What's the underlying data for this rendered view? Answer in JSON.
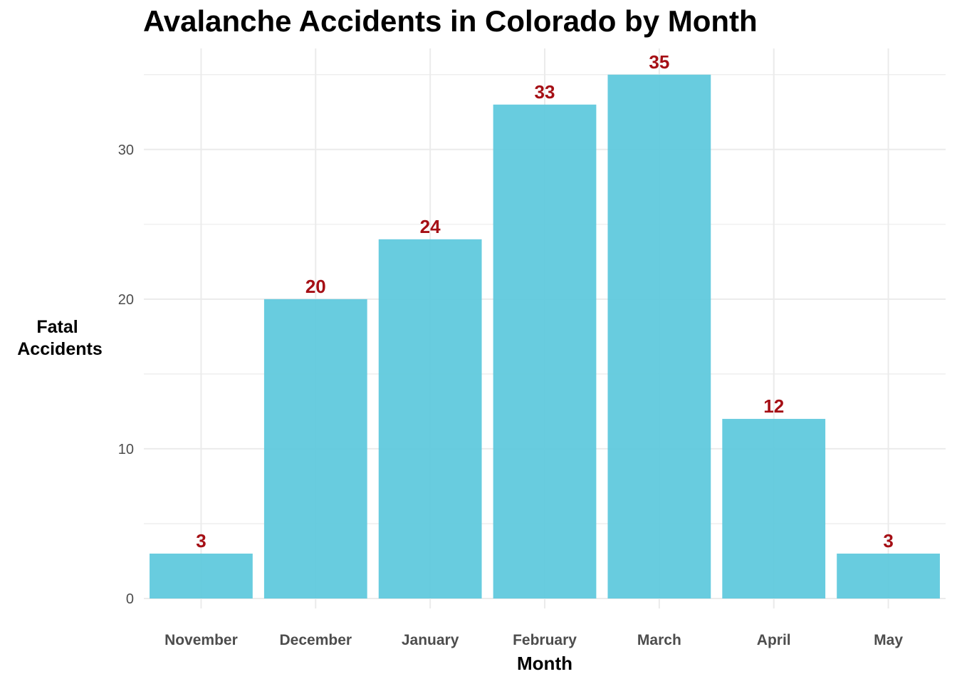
{
  "chart_data": {
    "type": "bar",
    "title": "Avalanche Accidents in Colorado by Month",
    "xlabel": "Month",
    "ylabel_lines": [
      "Fatal",
      "Accidents"
    ],
    "categories": [
      "November",
      "December",
      "January",
      "February",
      "March",
      "April",
      "May"
    ],
    "values": [
      3,
      20,
      24,
      33,
      35,
      12,
      3
    ],
    "ylim": [
      0,
      36.75
    ],
    "yticks": [
      0,
      10,
      20,
      30
    ],
    "grid": true,
    "bar_color": "#5bc8dc",
    "label_color": "#a50f15",
    "grid_color": "#ebebeb"
  }
}
